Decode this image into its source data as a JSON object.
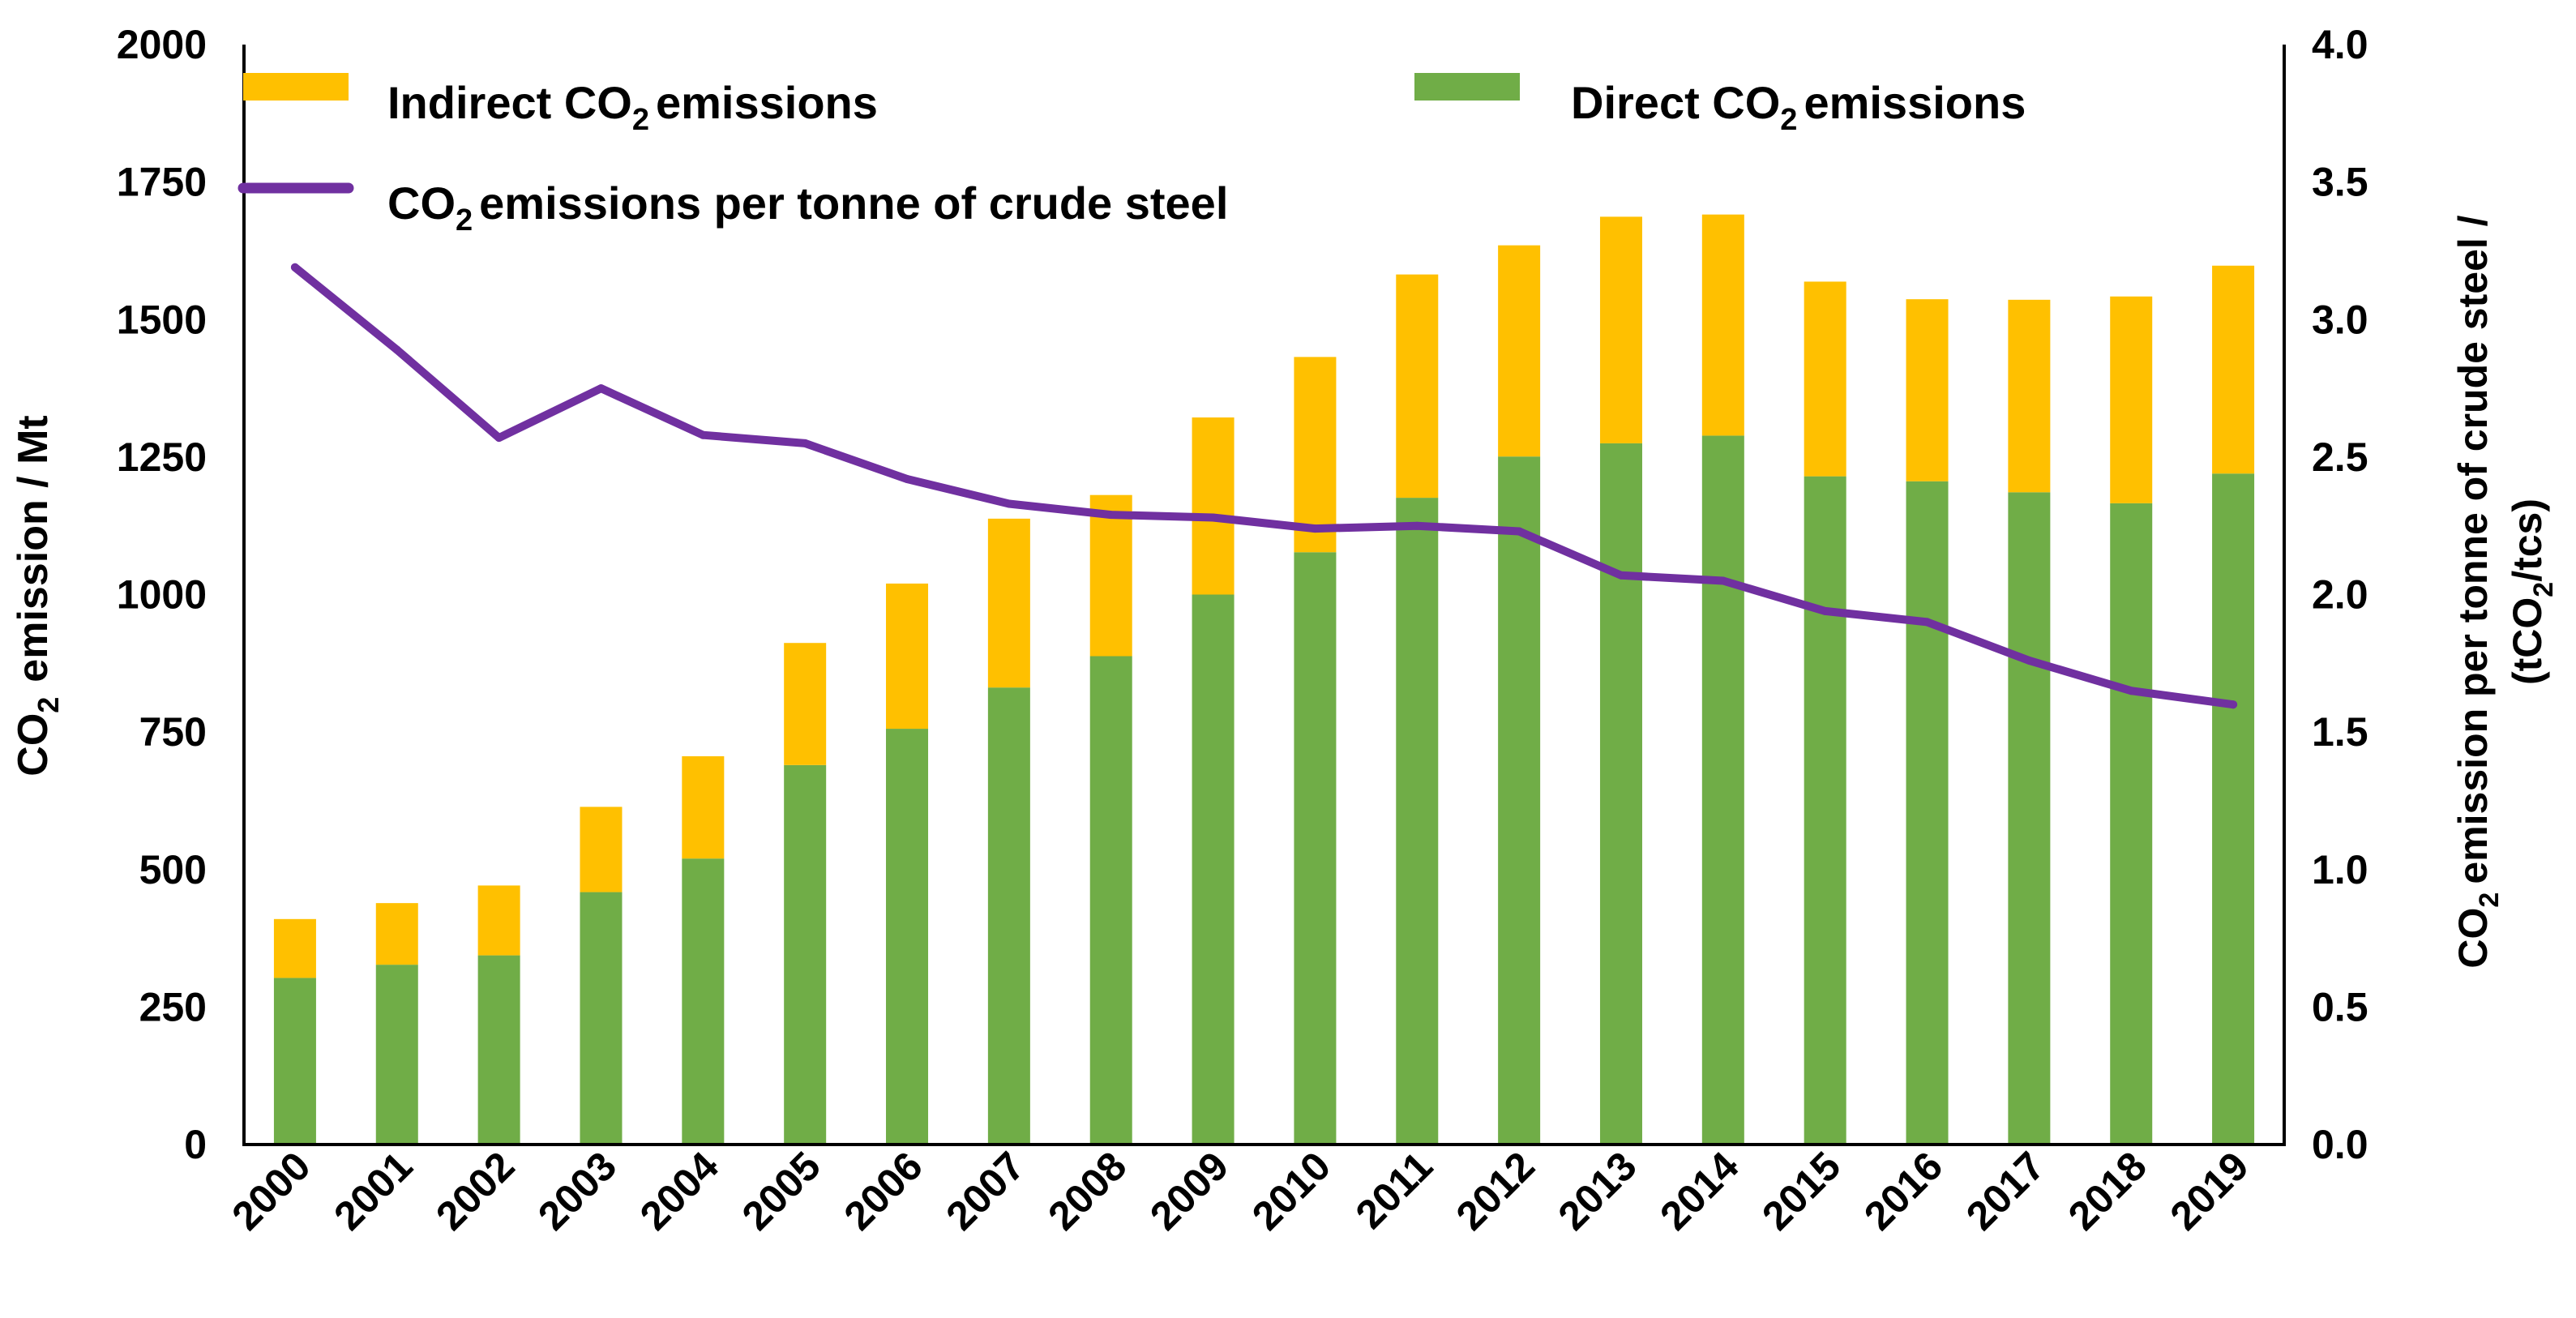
{
  "chart_data": {
    "type": "bar",
    "stacked": true,
    "categories": [
      "2000",
      "2001",
      "2002",
      "2003",
      "2004",
      "2005",
      "2006",
      "2007",
      "2008",
      "2009",
      "2010",
      "2011",
      "2012",
      "2013",
      "2014",
      "2015",
      "2016",
      "2017",
      "2018",
      "2019"
    ],
    "series": [
      {
        "name": "Direct CO2 emissions",
        "kind": "bar",
        "axis": "left",
        "color": "#70AD47",
        "values": [
          303,
          327,
          344,
          459,
          520,
          690,
          756,
          831,
          888,
          1000,
          1077,
          1176,
          1251,
          1275,
          1289,
          1215,
          1206,
          1186,
          1166,
          1220
        ]
      },
      {
        "name": "Indirect CO2 emissions",
        "kind": "bar",
        "axis": "left",
        "color": "#FFC000",
        "values": [
          107,
          112,
          127,
          155,
          186,
          222,
          264,
          307,
          293,
          322,
          355,
          406,
          384,
          412,
          402,
          354,
          331,
          350,
          376,
          378
        ]
      },
      {
        "name": "CO2 emissions per tonne of crude steel",
        "kind": "line",
        "axis": "right",
        "color": "#7030A0",
        "values": [
          3.19,
          2.89,
          2.57,
          2.75,
          2.58,
          2.55,
          2.42,
          2.33,
          2.29,
          2.28,
          2.24,
          2.25,
          2.23,
          2.07,
          2.05,
          1.94,
          1.9,
          1.76,
          1.65,
          1.6
        ]
      }
    ],
    "y_left": {
      "label_prefix": "CO",
      "label_sub": "2",
      "label_suffix": "emission / Mt",
      "range": [
        0,
        2000
      ],
      "ticks": [
        "0",
        "250",
        "500",
        "750",
        "1000",
        "1250",
        "1500",
        "1750",
        "2000"
      ]
    },
    "y_right": {
      "label_line1_prefix": "CO",
      "label_line1_sub": "2",
      "label_line1_suffix": "emission per tonne of crude steel /",
      "label_line2_prefix": "(tCO",
      "label_line2_sub": "2",
      "label_line2_suffix": "/tcs)",
      "range": [
        0,
        4
      ],
      "ticks": [
        "0.0",
        "0.5",
        "1.0",
        "1.5",
        "2.0",
        "2.5",
        "3.0",
        "3.5",
        "4.0"
      ]
    },
    "legend": {
      "position": "top",
      "indirect": {
        "prefix": "Indirect  CO",
        "sub": "2",
        "suffix": "emissions"
      },
      "direct": {
        "prefix": "Direct  CO",
        "sub": "2",
        "suffix": "emissions"
      },
      "per_tonne": {
        "prefix": "CO",
        "sub": "2",
        "suffix": "emissions  per tonne  of crude  steel"
      }
    },
    "grid": false
  }
}
